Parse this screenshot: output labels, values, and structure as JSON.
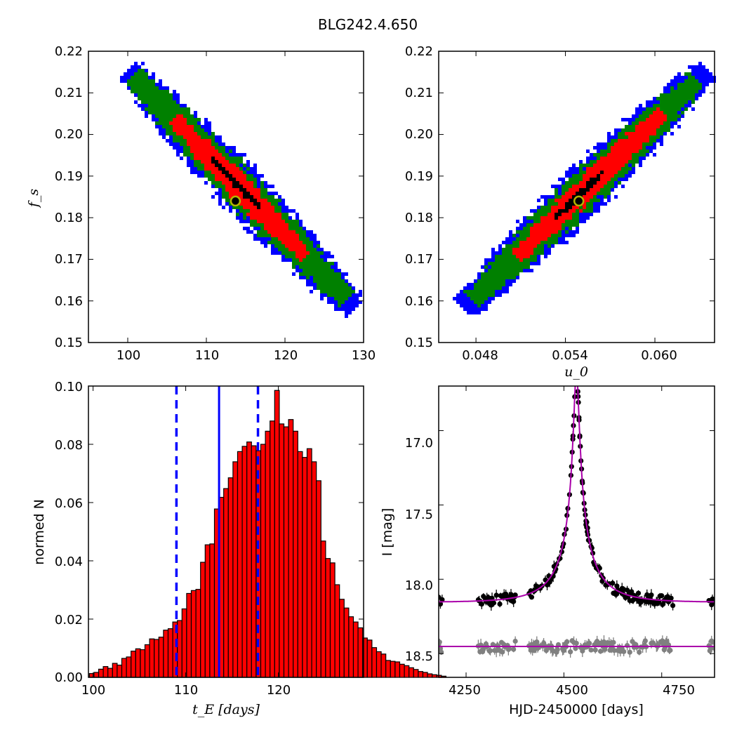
{
  "title": "BLG242.4.650",
  "colors": {
    "sigma3": "#0000ff",
    "sigma2": "#008000",
    "sigma1": "#ff0000",
    "best": "#000000",
    "marker_edge": "#b5b500",
    "model": "#aa00aa",
    "data_main": "#000000",
    "data_alt": "#808080",
    "dash": "#0000ff"
  },
  "chart_data": [
    {
      "id": "fs_vs_tE",
      "type": "heatmap",
      "title": "",
      "xlabel": "",
      "ylabel": "f_s",
      "xlim": [
        95,
        130
      ],
      "ylim": [
        0.15,
        0.22
      ],
      "xticks": [
        "100",
        "110",
        "120",
        "130"
      ],
      "yticks": [
        "0.15",
        "0.16",
        "0.17",
        "0.18",
        "0.19",
        "0.20",
        "0.21",
        "0.22"
      ],
      "best_fit": {
        "x": 113.7,
        "y": 0.184
      },
      "contour_axis": [
        [
          100,
          0.2155
        ],
        [
          129,
          0.158
        ]
      ],
      "contour_halfwidth": {
        "sigma3": 0.0055,
        "sigma2": 0.0043,
        "sigma1": 0.0028,
        "best": 0.0008
      },
      "contour_extent": {
        "sigma3": [
          0,
          1
        ],
        "sigma2": [
          0.02,
          0.96
        ],
        "sigma1": [
          0.2,
          0.78
        ],
        "best": [
          0.36,
          0.58
        ]
      }
    },
    {
      "id": "fs_vs_u0",
      "type": "heatmap",
      "title": "",
      "xlabel": "u_0",
      "ylabel": "",
      "xlim": [
        0.0455,
        0.064
      ],
      "ylim": [
        0.15,
        0.22
      ],
      "xticks": [
        "0.048",
        "0.054",
        "0.060"
      ],
      "yticks": [
        "0.15",
        "0.16",
        "0.17",
        "0.18",
        "0.19",
        "0.20",
        "0.21",
        "0.22"
      ],
      "best_fit": {
        "x": 0.0549,
        "y": 0.184
      },
      "contour_axis": [
        [
          0.0471,
          0.158
        ],
        [
          0.0635,
          0.2155
        ]
      ],
      "contour_halfwidth": {
        "sigma3": 0.0055,
        "sigma2": 0.0043,
        "sigma1": 0.0028,
        "best": 0.0008
      },
      "contour_extent": {
        "sigma3": [
          0,
          1
        ],
        "sigma2": [
          0.04,
          0.96
        ],
        "sigma1": [
          0.22,
          0.82
        ],
        "best": [
          0.38,
          0.58
        ]
      }
    },
    {
      "id": "tE_histogram",
      "type": "bar",
      "title": "",
      "xlabel": "t_E [days]",
      "ylabel": "normed N",
      "xlim": [
        99.5,
        129.2
      ],
      "ylim": [
        0,
        0.1
      ],
      "xticks": [
        "100",
        "110",
        "120"
      ],
      "yticks": [
        "0.00",
        "0.02",
        "0.04",
        "0.06",
        "0.08",
        "0.10"
      ],
      "bin_start": 99.6,
      "bin_width": 0.5,
      "values": [
        0.0013,
        0.0017,
        0.0028,
        0.0037,
        0.0031,
        0.0048,
        0.0042,
        0.0065,
        0.007,
        0.009,
        0.0098,
        0.0095,
        0.0112,
        0.0132,
        0.013,
        0.0138,
        0.0162,
        0.0167,
        0.019,
        0.0195,
        0.0235,
        0.0288,
        0.0298,
        0.0302,
        0.0395,
        0.0455,
        0.0458,
        0.0578,
        0.0618,
        0.0648,
        0.0685,
        0.074,
        0.0775,
        0.0793,
        0.0808,
        0.0795,
        0.0778,
        0.08,
        0.0845,
        0.088,
        0.0985,
        0.087,
        0.086,
        0.0885,
        0.0845,
        0.0775,
        0.0755,
        0.0785,
        0.074,
        0.0675,
        0.0468,
        0.0408,
        0.0393,
        0.0318,
        0.0268,
        0.0238,
        0.0208,
        0.019,
        0.017,
        0.0135,
        0.0128,
        0.0102,
        0.0088,
        0.008,
        0.0058,
        0.0055,
        0.0053,
        0.0045,
        0.004,
        0.0033,
        0.0027,
        0.002,
        0.0017,
        0.0012,
        0.0009,
        0.0007,
        0.0004
      ],
      "median": 113.6,
      "bounds": [
        109.0,
        117.8
      ]
    },
    {
      "id": "light_curve",
      "type": "scatter",
      "title": "",
      "xlabel": "HJD-2450000 [days]",
      "ylabel": "I [mag]",
      "xlim": [
        4180,
        4885
      ],
      "ylim": [
        18.66,
        16.7
      ],
      "xticks": [
        "4250",
        "4500",
        "4750"
      ],
      "yticks": [
        "17.0",
        "17.5",
        "18.0",
        "18.5"
      ],
      "model": {
        "t0": 4532,
        "u0": 0.055,
        "tE": 113.6,
        "baseline_mag": 18.155,
        "fs": 0.184,
        "companion_mag": 18.452
      },
      "seasons": [
        [
          4180,
          4190
        ],
        [
          4280,
          4380
        ],
        [
          4410,
          4780
        ],
        [
          4870,
          4885
        ]
      ],
      "data_noise": 0.03
    }
  ]
}
